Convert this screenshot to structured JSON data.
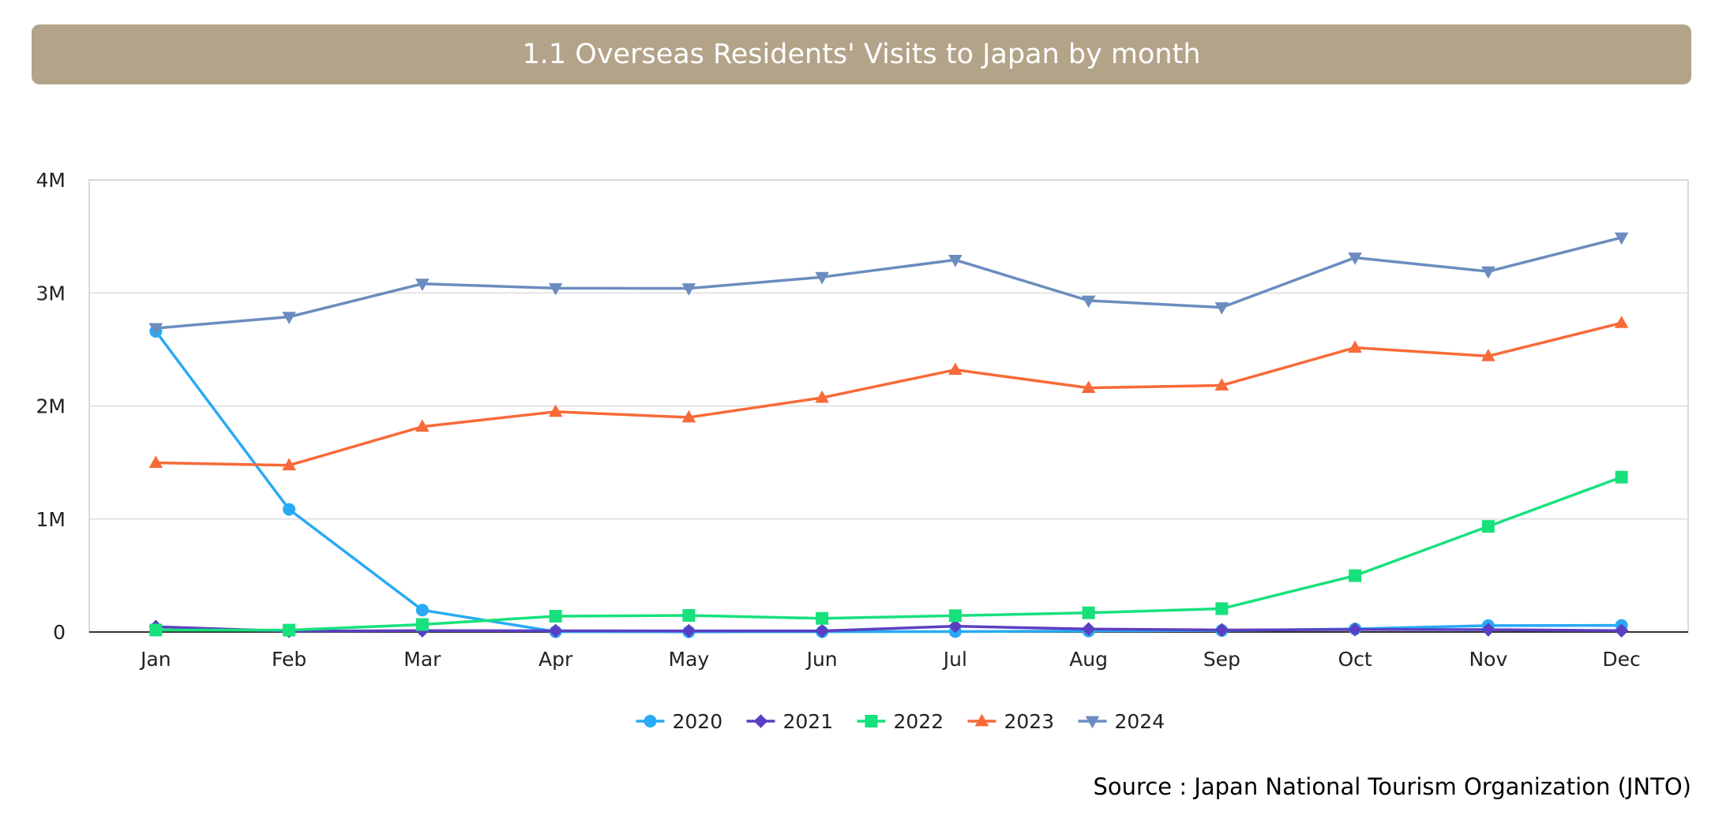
{
  "title": "1.1 Overseas Residents' Visits to Japan by month",
  "source": "Source : Japan National Tourism Organization (JNTO)",
  "chart_data": {
    "type": "line",
    "title": "1.1 Overseas Residents' Visits to Japan by month",
    "xlabel": "",
    "ylabel": "",
    "categories": [
      "Jan",
      "Feb",
      "Mar",
      "Apr",
      "May",
      "Jun",
      "Jul",
      "Aug",
      "Sep",
      "Oct",
      "Nov",
      "Dec"
    ],
    "ylim": [
      0,
      4000000
    ],
    "yticks": [
      0,
      1000000,
      2000000,
      3000000,
      4000000
    ],
    "ytick_labels": [
      "0",
      "1M",
      "2M",
      "3M",
      "4M"
    ],
    "grid": true,
    "legend_position": "bottom",
    "series": [
      {
        "name": "2020",
        "color": "#29aaf4",
        "marker": "circle",
        "values": [
          2660000,
          1085000,
          194000,
          2900,
          1700,
          2600,
          3800,
          8700,
          13700,
          27400,
          56700,
          58700
        ]
      },
      {
        "name": "2021",
        "color": "#5b3fc2",
        "marker": "diamond",
        "values": [
          46500,
          7400,
          12300,
          10900,
          10000,
          9300,
          51100,
          25900,
          17700,
          22100,
          20700,
          12100
        ]
      },
      {
        "name": "2022",
        "color": "#17e17c",
        "marker": "square",
        "values": [
          17800,
          16700,
          66100,
          139500,
          147000,
          120400,
          144500,
          169900,
          206600,
          498600,
          934500,
          1370000
        ]
      },
      {
        "name": "2023",
        "color": "#f86a39",
        "marker": "triangle-up",
        "values": [
          1497000,
          1475000,
          1817000,
          1949000,
          1899000,
          2073000,
          2320000,
          2160000,
          2182000,
          2516000,
          2441000,
          2734000
        ]
      },
      {
        "name": "2024",
        "color": "#6b8cbf",
        "marker": "triangle-down",
        "values": [
          2688000,
          2788000,
          3081000,
          3042000,
          3040000,
          3140000,
          3292000,
          2932000,
          2872000,
          3312000,
          3190000,
          3490000
        ]
      }
    ]
  }
}
